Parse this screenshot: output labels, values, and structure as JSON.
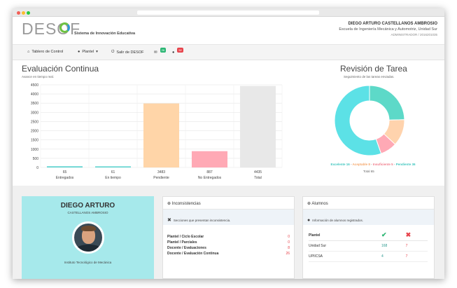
{
  "header": {
    "logo_text": "DESOF",
    "logo_subtitle": "Sistema de Innovación Educativa",
    "user_name": "DIEGO ARTURO CASTELLANOS AMBROSIO",
    "user_school": "Escuela de Ingeniería Mecánica y Automotriz, Unidad Sur",
    "user_role": "ADMINISTRADOR / 2016201035"
  },
  "nav": {
    "dashboard": "Tablero de Control",
    "plantel": "Plantel",
    "logout": "Salir de DESOF",
    "badge_green": "26",
    "badge_red": "52"
  },
  "evaluacion": {
    "title": "Evaluación Continua",
    "subtitle": "Avance en tiempo real."
  },
  "revision": {
    "title": "Revisión de Tarea",
    "subtitle": "Seguimiento de las tareas enviadas.",
    "legend": [
      {
        "label": "Excelente 16",
        "color": "#3fc6bf"
      },
      {
        "label": "Aceptable 8",
        "color": "#f5a76a"
      },
      {
        "label": "Insuficiente 5",
        "color": "#f07b8a"
      },
      {
        "label": "Pendiente 36",
        "color": "#3fc6bf"
      }
    ],
    "total_label": "Total 65"
  },
  "chart_data": [
    {
      "type": "bar",
      "categories": [
        "Entregados",
        "En tiempo",
        "Pendiente",
        "No Entregados",
        "Total"
      ],
      "values": [
        65,
        61,
        3483,
        887,
        4435
      ],
      "colors": [
        "#5ed4d0",
        "#5ed4d0",
        "#ffd5a8",
        "#ffa9b5",
        "#e8e8e8"
      ],
      "ylim": [
        0,
        4500
      ],
      "yticks": [
        0,
        500,
        1000,
        1500,
        2000,
        2500,
        3000,
        3500,
        4000,
        4500
      ],
      "grid": true
    },
    {
      "type": "pie",
      "donut": true,
      "labels": [
        "Excelente",
        "Aceptable",
        "Insuficiente",
        "Pendiente"
      ],
      "values": [
        16,
        8,
        5,
        36
      ],
      "colors": [
        "#5dd9c8",
        "#ffd3ad",
        "#ffa9b5",
        "#5ce1e6"
      ]
    }
  ],
  "profile": {
    "first_name": "DIEGO ARTURO",
    "surnames": "CASTELLANOS AMBROSIO",
    "institute": "Instituto Tecnológico de Mecánica"
  },
  "inconsistencias": {
    "title": "Inconsistencias",
    "note": "Secciones que presentan inconsistencia.",
    "rows": [
      {
        "label": "Plantel / Ciclo Escolar",
        "value": "0"
      },
      {
        "label": "Plantel / Parciales",
        "value": "0"
      },
      {
        "label": "Docente / Evaluaciones",
        "value": "8"
      },
      {
        "label": "Docente / Evaluación Continua",
        "value": "26"
      }
    ]
  },
  "alumnos": {
    "title": "Alumnos",
    "note": "Información de alumnos registrados.",
    "col_plantel": "Plantel",
    "rows": [
      {
        "name": "Unidad Sur",
        "ok": "168",
        "bad": "7"
      },
      {
        "name": "UPIICSA",
        "ok": "4",
        "bad": "7"
      }
    ]
  }
}
